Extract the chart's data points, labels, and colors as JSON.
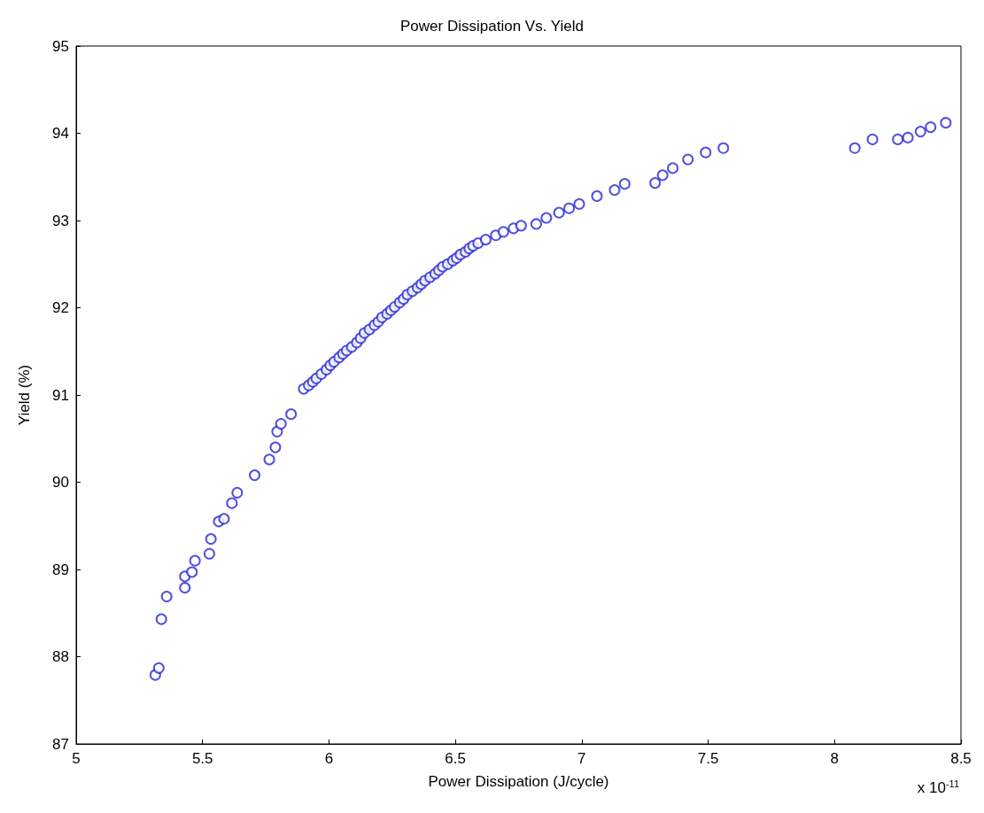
{
  "chart_data": {
    "type": "scatter",
    "title": "Power Dissipation Vs. Yield",
    "xlabel": "Power Dissipation (J/cycle)",
    "ylabel": "Yield (%)",
    "annotations": [
      "x 10$^{-11}$"
    ],
    "x": [
      5.313,
      5.327,
      5.337,
      5.358,
      5.43,
      5.43,
      5.458,
      5.47,
      5.527,
      5.533,
      5.564,
      5.585,
      5.616,
      5.637,
      5.706,
      5.764,
      5.788,
      5.795,
      5.81,
      5.85,
      5.9,
      5.92,
      5.936,
      5.95,
      5.97,
      5.99,
      6.005,
      6.02,
      6.04,
      6.055,
      6.07,
      6.09,
      6.11,
      6.125,
      6.14,
      6.16,
      6.18,
      6.195,
      6.21,
      6.23,
      6.245,
      6.26,
      6.28,
      6.295,
      6.31,
      6.33,
      6.35,
      6.365,
      6.38,
      6.4,
      6.42,
      6.435,
      6.45,
      6.47,
      6.49,
      6.505,
      6.52,
      6.54,
      6.555,
      6.57,
      6.59,
      6.62,
      6.66,
      6.69,
      6.73,
      6.76,
      6.82,
      6.86,
      6.91,
      6.95,
      6.99,
      7.06,
      7.13,
      7.17,
      7.29,
      7.32,
      7.36,
      7.42,
      7.49,
      7.56,
      8.08,
      8.15,
      8.25,
      8.29,
      8.34,
      8.38,
      8.44
    ],
    "values": [
      87.79,
      87.87,
      88.43,
      88.69,
      88.79,
      88.92,
      88.97,
      89.1,
      89.18,
      89.35,
      89.55,
      89.58,
      89.76,
      89.88,
      90.08,
      90.26,
      90.4,
      90.58,
      90.67,
      90.78,
      91.07,
      91.11,
      91.15,
      91.19,
      91.24,
      91.29,
      91.34,
      91.38,
      91.43,
      91.47,
      91.51,
      91.55,
      91.6,
      91.65,
      91.71,
      91.75,
      91.8,
      91.84,
      91.89,
      91.93,
      91.97,
      92.01,
      92.06,
      92.1,
      92.15,
      92.19,
      92.23,
      92.27,
      92.31,
      92.35,
      92.39,
      92.43,
      92.47,
      92.5,
      92.54,
      92.57,
      92.61,
      92.64,
      92.68,
      92.71,
      92.74,
      92.78,
      92.83,
      92.87,
      92.91,
      92.94,
      92.96,
      93.03,
      93.09,
      93.14,
      93.19,
      93.28,
      93.35,
      93.42,
      93.43,
      93.52,
      93.6,
      93.7,
      93.78,
      93.83,
      93.83,
      93.93,
      93.93,
      93.95,
      94.02,
      94.07,
      94.12
    ],
    "color": "#2727d6",
    "marker": "circle",
    "xlim": [
      5,
      8.5
    ],
    "xticks": [
      5,
      5.5,
      6,
      6.5,
      7,
      7.5,
      8,
      8.5
    ],
    "ylim": [
      87,
      95
    ],
    "yticks": [
      87,
      88,
      89,
      90,
      91,
      92,
      93,
      94,
      95
    ],
    "grid": false
  }
}
